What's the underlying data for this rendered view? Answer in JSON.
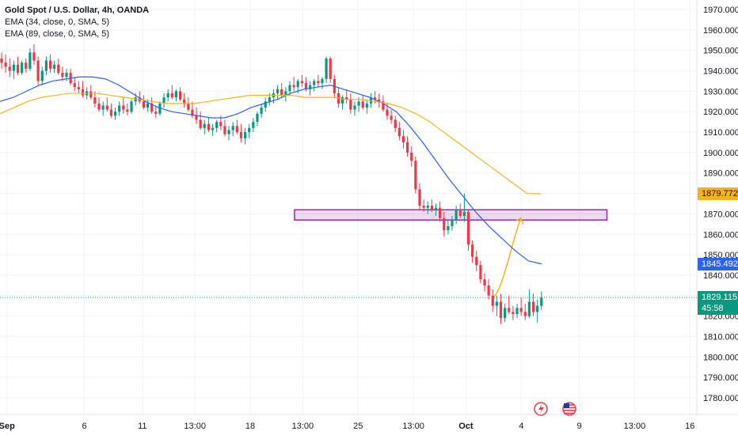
{
  "header": {
    "title": "Gold Spot / U.S. Dollar, 4h, OANDA",
    "ema1": "EMA (34, close, 0, SMA, 5)",
    "ema2": "EMA (89, close, 0, SMA, 5)"
  },
  "price_tags": {
    "ema89": {
      "value": "1879.772",
      "color": "#f5b31a",
      "text_color": "#131722"
    },
    "ema34": {
      "value": "1845.492",
      "color": "#2962ff",
      "text_color": "#ffffff"
    },
    "last": {
      "value": "1829.115",
      "countdown": "45:58",
      "color": "#089981",
      "text_color": "#ffffff"
    }
  },
  "icons": [
    "lightning-event-icon",
    "us-flag-icon"
  ],
  "chart_data": {
    "type": "candlestick",
    "symbol": "Gold Spot / U.S. Dollar",
    "interval": "4h",
    "ylim": [
      1775,
      1975
    ],
    "y_ticks": [
      1970,
      1960,
      1950,
      1940,
      1930,
      1920,
      1910,
      1900,
      1890,
      1880,
      1870,
      1860,
      1850,
      1840,
      1830,
      1820,
      1810,
      1800,
      1790,
      1780
    ],
    "y_tick_labels": [
      "1970.000",
      "1960.000",
      "1950.000",
      "1940.000",
      "1930.000",
      "1920.000",
      "1910.000",
      "1900.000",
      "1890.000",
      "1880.000",
      "1870.000",
      "1860.000",
      "1850.000",
      "1840.000",
      "1830.000",
      "1820.000",
      "1810.000",
      "1800.000",
      "1790.000",
      "1780.000"
    ],
    "x_tick_labels": [
      "Sep",
      "6",
      "11",
      "13:00",
      "18",
      "13:00",
      "25",
      "13:00",
      "Oct",
      "4",
      "9",
      "13:00",
      "16"
    ],
    "x_tick_index": [
      2,
      30,
      51,
      70,
      90,
      109,
      129,
      149,
      168,
      188,
      209,
      229,
      249
    ],
    "bars_total": 252,
    "candles": [
      [
        1946,
        1949,
        1941,
        1944
      ],
      [
        1944,
        1948,
        1939,
        1942
      ],
      [
        1942,
        1946,
        1937,
        1940
      ],
      [
        1940,
        1945,
        1936,
        1943
      ],
      [
        1943,
        1947,
        1938,
        1939
      ],
      [
        1939,
        1945,
        1938,
        1944
      ],
      [
        1944,
        1946,
        1939,
        1941
      ],
      [
        1941,
        1951,
        1940,
        1949
      ],
      [
        1949,
        1953,
        1943,
        1945
      ],
      [
        1945,
        1947,
        1933,
        1935
      ],
      [
        1935,
        1942,
        1933,
        1940
      ],
      [
        1940,
        1947,
        1938,
        1945
      ],
      [
        1945,
        1948,
        1939,
        1941
      ],
      [
        1941,
        1945,
        1939,
        1943
      ],
      [
        1943,
        1946,
        1938,
        1939
      ],
      [
        1939,
        1942,
        1935,
        1937
      ],
      [
        1937,
        1941,
        1935,
        1939
      ],
      [
        1939,
        1941,
        1933,
        1934
      ],
      [
        1934,
        1937,
        1930,
        1932
      ],
      [
        1932,
        1935,
        1929,
        1931
      ],
      [
        1931,
        1935,
        1927,
        1928
      ],
      [
        1928,
        1932,
        1926,
        1930
      ],
      [
        1930,
        1933,
        1926,
        1927
      ],
      [
        1927,
        1930,
        1922,
        1924
      ],
      [
        1924,
        1927,
        1920,
        1921
      ],
      [
        1921,
        1925,
        1918,
        1923
      ],
      [
        1923,
        1927,
        1920,
        1921
      ],
      [
        1921,
        1924,
        1917,
        1918
      ],
      [
        1918,
        1922,
        1916,
        1920
      ],
      [
        1920,
        1925,
        1918,
        1923
      ],
      [
        1923,
        1927,
        1919,
        1921
      ],
      [
        1921,
        1924,
        1918,
        1920
      ],
      [
        1920,
        1926,
        1919,
        1925
      ],
      [
        1925,
        1929,
        1923,
        1927
      ],
      [
        1927,
        1930,
        1924,
        1925
      ],
      [
        1925,
        1928,
        1921,
        1922
      ],
      [
        1922,
        1926,
        1920,
        1924
      ],
      [
        1924,
        1927,
        1919,
        1920
      ],
      [
        1920,
        1923,
        1917,
        1919
      ],
      [
        1919,
        1925,
        1918,
        1924
      ],
      [
        1924,
        1929,
        1922,
        1927
      ],
      [
        1927,
        1931,
        1925,
        1929
      ],
      [
        1929,
        1933,
        1926,
        1927
      ],
      [
        1927,
        1931,
        1925,
        1930
      ],
      [
        1930,
        1932,
        1925,
        1926
      ],
      [
        1926,
        1929,
        1922,
        1924
      ],
      [
        1924,
        1927,
        1920,
        1921
      ],
      [
        1921,
        1925,
        1917,
        1918
      ],
      [
        1918,
        1922,
        1914,
        1916
      ],
      [
        1916,
        1920,
        1911,
        1912
      ],
      [
        1912,
        1916,
        1909,
        1914
      ],
      [
        1914,
        1917,
        1910,
        1911
      ],
      [
        1911,
        1914,
        1908,
        1912
      ],
      [
        1912,
        1916,
        1910,
        1915
      ],
      [
        1915,
        1918,
        1911,
        1913
      ],
      [
        1913,
        1916,
        1908,
        1909
      ],
      [
        1909,
        1913,
        1906,
        1911
      ],
      [
        1911,
        1915,
        1908,
        1913
      ],
      [
        1913,
        1916,
        1909,
        1910
      ],
      [
        1910,
        1914,
        1905,
        1907
      ],
      [
        1907,
        1912,
        1904,
        1910
      ],
      [
        1910,
        1914,
        1907,
        1912
      ],
      [
        1912,
        1917,
        1910,
        1915
      ],
      [
        1915,
        1920,
        1913,
        1919
      ],
      [
        1919,
        1924,
        1917,
        1922
      ],
      [
        1922,
        1927,
        1920,
        1925
      ],
      [
        1925,
        1929,
        1923,
        1927
      ],
      [
        1927,
        1931,
        1924,
        1929
      ],
      [
        1929,
        1933,
        1926,
        1931
      ],
      [
        1931,
        1934,
        1927,
        1928
      ],
      [
        1928,
        1932,
        1925,
        1930
      ],
      [
        1930,
        1935,
        1928,
        1933
      ],
      [
        1933,
        1937,
        1930,
        1932
      ],
      [
        1932,
        1936,
        1929,
        1935
      ],
      [
        1935,
        1938,
        1932,
        1934
      ],
      [
        1934,
        1937,
        1930,
        1931
      ],
      [
        1931,
        1935,
        1928,
        1933
      ],
      [
        1933,
        1936,
        1930,
        1935
      ],
      [
        1935,
        1938,
        1932,
        1934
      ],
      [
        1934,
        1937,
        1931,
        1936
      ],
      [
        1936,
        1947,
        1934,
        1946
      ],
      [
        1946,
        1947,
        1934,
        1936
      ],
      [
        1936,
        1938,
        1927,
        1929
      ],
      [
        1929,
        1932,
        1922,
        1924
      ],
      [
        1924,
        1928,
        1921,
        1927
      ],
      [
        1927,
        1931,
        1924,
        1926
      ],
      [
        1926,
        1929,
        1919,
        1921
      ],
      [
        1921,
        1925,
        1918,
        1923
      ],
      [
        1923,
        1927,
        1920,
        1925
      ],
      [
        1925,
        1928,
        1921,
        1922
      ],
      [
        1922,
        1926,
        1919,
        1924
      ],
      [
        1924,
        1929,
        1922,
        1927
      ],
      [
        1927,
        1930,
        1924,
        1926
      ],
      [
        1926,
        1929,
        1922,
        1925
      ],
      [
        1925,
        1928,
        1920,
        1921
      ],
      [
        1921,
        1924,
        1916,
        1918
      ],
      [
        1918,
        1921,
        1914,
        1916
      ],
      [
        1916,
        1918,
        1910,
        1912
      ],
      [
        1912,
        1915,
        1906,
        1908
      ],
      [
        1908,
        1911,
        1902,
        1905
      ],
      [
        1905,
        1908,
        1898,
        1900
      ],
      [
        1900,
        1903,
        1893,
        1896
      ],
      [
        1896,
        1898,
        1880,
        1882
      ],
      [
        1882,
        1885,
        1872,
        1874
      ],
      [
        1874,
        1877,
        1871,
        1873
      ],
      [
        1873,
        1876,
        1870,
        1874
      ],
      [
        1874,
        1877,
        1871,
        1872
      ],
      [
        1872,
        1875,
        1869,
        1873
      ],
      [
        1873,
        1876,
        1866,
        1868
      ],
      [
        1868,
        1871,
        1859,
        1862
      ],
      [
        1862,
        1867,
        1860,
        1864
      ],
      [
        1864,
        1869,
        1862,
        1867
      ],
      [
        1867,
        1874,
        1865,
        1872
      ],
      [
        1872,
        1875,
        1868,
        1869
      ],
      [
        1869,
        1880,
        1866,
        1871
      ],
      [
        1871,
        1872,
        1852,
        1855
      ],
      [
        1855,
        1857,
        1846,
        1849
      ],
      [
        1849,
        1852,
        1842,
        1845
      ],
      [
        1845,
        1847,
        1836,
        1838
      ],
      [
        1838,
        1841,
        1832,
        1835
      ],
      [
        1835,
        1838,
        1828,
        1830
      ],
      [
        1830,
        1833,
        1822,
        1825
      ],
      [
        1825,
        1830,
        1820,
        1827
      ],
      [
        1827,
        1831,
        1816,
        1819
      ],
      [
        1819,
        1826,
        1817,
        1824
      ],
      [
        1824,
        1830,
        1821,
        1822
      ],
      [
        1822,
        1825,
        1818,
        1821
      ],
      [
        1821,
        1826,
        1819,
        1824
      ],
      [
        1824,
        1829,
        1820,
        1822
      ],
      [
        1822,
        1826,
        1818,
        1820
      ],
      [
        1820,
        1833,
        1819,
        1827
      ],
      [
        1827,
        1831,
        1820,
        1822
      ],
      [
        1822,
        1828,
        1817,
        1825
      ],
      [
        1825,
        1832,
        1823,
        1829
      ]
    ],
    "candle_start_index": 0,
    "candle_step": 2.33,
    "ema34": [
      1925,
      1927,
      1930,
      1933,
      1935,
      1936,
      1937,
      1937,
      1936,
      1933,
      1929,
      1925,
      1922,
      1920,
      1919,
      1918,
      1917,
      1917,
      1919,
      1922,
      1924,
      1926,
      1929,
      1931,
      1932,
      1933,
      1931,
      1929,
      1927,
      1924,
      1920,
      1913,
      1905,
      1896,
      1887,
      1879,
      1871,
      1864,
      1858,
      1852,
      1847,
      1845.5
    ],
    "ema89": [
      1919,
      1922,
      1925,
      1927,
      1928,
      1929,
      1929,
      1929,
      1928,
      1927,
      1926,
      1925,
      1924,
      1924,
      1924,
      1925,
      1926,
      1927,
      1928,
      1928,
      1928,
      1928,
      1927,
      1927,
      1927,
      1926,
      1926,
      1925,
      1924,
      1922,
      1919,
      1915,
      1910,
      1905,
      1900,
      1895,
      1890,
      1885,
      1880,
      1879.8
    ],
    "zone": {
      "low": 1867,
      "high": 1872,
      "from_bar": 106,
      "to_bar": 219
    },
    "projection": {
      "from": 1829,
      "to": 1868,
      "from_bar": 177,
      "to_bar": 185
    },
    "last_price": 1829.115
  }
}
